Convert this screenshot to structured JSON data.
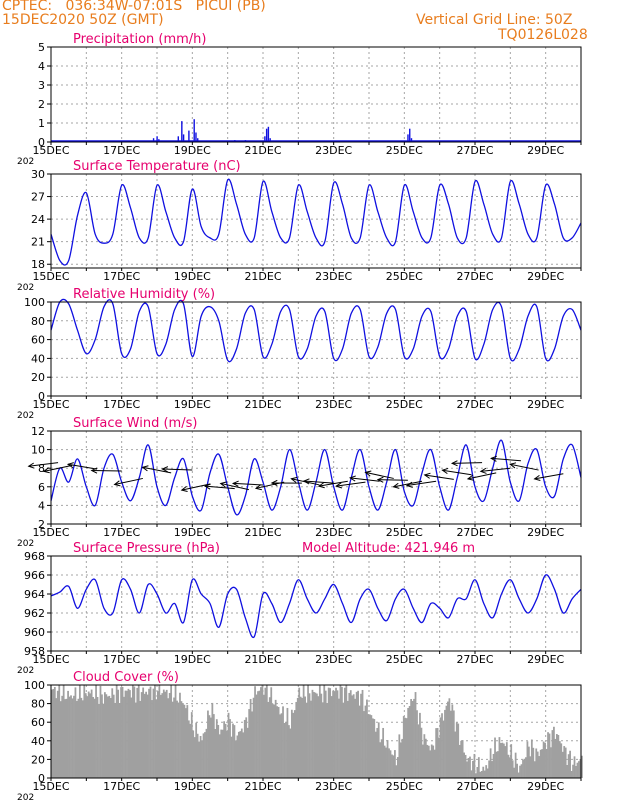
{
  "header": {
    "line1": "CPTEC:   036:34W-07:01S   PICUI (PB)",
    "line2": "15DEC2020 50Z (GMT)",
    "right1": "Vertical Grid Line: 50Z",
    "right2": "TQ0126L028"
  },
  "colors": {
    "header": "#e87d1e",
    "panel_title": "#e6006e",
    "series": "#1010e0",
    "arrow": "#000000",
    "cloud": "#a0a0a0",
    "grid": "#a6a6a6"
  },
  "x_ticks": {
    "labels": [
      "15DEC",
      "17DEC",
      "19DEC",
      "21DEC",
      "23DEC",
      "25DEC",
      "27DEC",
      "29DEC"
    ],
    "days": [
      0,
      2,
      4,
      6,
      8,
      10,
      12,
      14
    ],
    "year_stub": "202"
  },
  "chart_data": [
    {
      "id": "precip",
      "type": "bar",
      "title": "Precipitation (mm/h)",
      "ylim": [
        0,
        5
      ],
      "yticks": [
        0,
        1,
        2,
        3,
        4,
        5
      ],
      "grid": true,
      "points": [
        [
          2.9,
          0.2
        ],
        [
          3.0,
          0.3
        ],
        [
          3.05,
          0.15
        ],
        [
          3.6,
          0.3
        ],
        [
          3.7,
          1.1
        ],
        [
          3.75,
          0.4
        ],
        [
          3.9,
          0.6
        ],
        [
          4.05,
          1.2
        ],
        [
          4.1,
          0.5
        ],
        [
          4.15,
          0.2
        ],
        [
          5.2,
          0.1
        ],
        [
          5.5,
          0.1
        ],
        [
          6.05,
          0.3
        ],
        [
          6.1,
          0.7
        ],
        [
          6.15,
          0.8
        ],
        [
          6.2,
          0.2
        ],
        [
          10.1,
          0.4
        ],
        [
          10.15,
          0.7
        ],
        [
          10.2,
          0.2
        ],
        [
          1.5,
          0.05
        ],
        [
          12.0,
          0.05
        ],
        [
          13.3,
          0.05
        ]
      ]
    },
    {
      "id": "temp",
      "type": "line",
      "title": "Surface Temperature (nC)",
      "ylim": [
        17.5,
        30
      ],
      "yticks": [
        18,
        21,
        24,
        27,
        30
      ],
      "grid": true,
      "x": [
        0,
        0.25,
        0.5,
        0.75,
        1.0,
        1.25,
        1.5,
        1.75,
        2.0,
        2.25,
        2.5,
        2.75,
        3.0,
        3.25,
        3.5,
        3.75,
        4.0,
        4.25,
        4.5,
        4.75,
        5.0,
        5.25,
        5.5,
        5.75,
        6.0,
        6.25,
        6.5,
        6.75,
        7.0,
        7.25,
        7.5,
        7.75,
        8.0,
        8.25,
        8.5,
        8.75,
        9.0,
        9.25,
        9.5,
        9.75,
        10.0,
        10.25,
        10.5,
        10.75,
        11.0,
        11.25,
        11.5,
        11.75,
        12.0,
        12.25,
        12.5,
        12.75,
        13.0,
        13.25,
        13.5,
        13.75,
        14.0,
        14.25,
        14.5,
        14.75,
        15.0
      ],
      "y": [
        22,
        18.5,
        18.5,
        24.5,
        27.5,
        22,
        20.8,
        22,
        28.5,
        25.5,
        21.5,
        21.5,
        28.5,
        25,
        21.5,
        21,
        28,
        23,
        21.5,
        22,
        29.2,
        26,
        22,
        21.5,
        29,
        25,
        21.5,
        21.5,
        28.5,
        25,
        21.5,
        21,
        28.8,
        26,
        21.5,
        21.5,
        28.5,
        25,
        21.5,
        21,
        28.5,
        25,
        21.5,
        21.5,
        28.5,
        26,
        21.5,
        21.5,
        29,
        26,
        22,
        21.5,
        29,
        26,
        22,
        21.5,
        28.5,
        26,
        21.5,
        21.5,
        23.5
      ]
    },
    {
      "id": "rh",
      "type": "line",
      "title": "Relative Humidity (%)",
      "ylim": [
        0,
        100
      ],
      "yticks": [
        0,
        20,
        40,
        60,
        80,
        100
      ],
      "grid": true,
      "x": [
        0,
        0.25,
        0.5,
        0.75,
        1.0,
        1.25,
        1.5,
        1.75,
        2.0,
        2.25,
        2.5,
        2.75,
        3.0,
        3.25,
        3.5,
        3.75,
        4.0,
        4.25,
        4.5,
        4.75,
        5.0,
        5.25,
        5.5,
        5.75,
        6.0,
        6.25,
        6.5,
        6.75,
        7.0,
        7.25,
        7.5,
        7.75,
        8.0,
        8.25,
        8.5,
        8.75,
        9.0,
        9.25,
        9.5,
        9.75,
        10.0,
        10.25,
        10.5,
        10.75,
        11.0,
        11.25,
        11.5,
        11.75,
        12.0,
        12.25,
        12.5,
        12.75,
        13.0,
        13.25,
        13.5,
        13.75,
        14.0,
        14.25,
        14.5,
        14.75,
        15.0
      ],
      "y": [
        70,
        100,
        98,
        70,
        45,
        60,
        95,
        98,
        45,
        50,
        90,
        95,
        45,
        55,
        92,
        98,
        42,
        85,
        95,
        80,
        38,
        50,
        88,
        92,
        42,
        55,
        90,
        92,
        42,
        50,
        85,
        90,
        40,
        50,
        88,
        92,
        42,
        52,
        88,
        92,
        42,
        50,
        85,
        90,
        42,
        50,
        85,
        90,
        40,
        55,
        92,
        95,
        40,
        50,
        85,
        95,
        40,
        50,
        85,
        92,
        70
      ]
    },
    {
      "id": "wind",
      "type": "line",
      "title": "Surface Wind (m/s)",
      "ylim": [
        2,
        12
      ],
      "yticks": [
        2,
        4,
        6,
        8,
        10,
        12
      ],
      "grid": true,
      "x": [
        0,
        0.25,
        0.5,
        0.75,
        1.0,
        1.25,
        1.5,
        1.75,
        2.0,
        2.25,
        2.5,
        2.75,
        3.0,
        3.25,
        3.5,
        3.75,
        4.0,
        4.25,
        4.5,
        4.75,
        5.0,
        5.25,
        5.5,
        5.75,
        6.0,
        6.25,
        6.5,
        6.75,
        7.0,
        7.25,
        7.5,
        7.75,
        8.0,
        8.25,
        8.5,
        8.75,
        9.0,
        9.25,
        9.5,
        9.75,
        10.0,
        10.25,
        10.5,
        10.75,
        11.0,
        11.25,
        11.5,
        11.75,
        12.0,
        12.25,
        12.5,
        12.75,
        13.0,
        13.25,
        13.5,
        13.75,
        14.0,
        14.25,
        14.5,
        14.75,
        15.0
      ],
      "y": [
        4.5,
        8,
        6.5,
        9,
        6,
        4,
        8,
        9.5,
        6.5,
        4.5,
        7,
        10.5,
        6,
        4,
        7,
        9,
        5,
        3.5,
        7.5,
        9.5,
        6,
        3,
        5,
        9,
        6.5,
        3.5,
        6,
        10,
        6.5,
        3.5,
        6.5,
        10,
        6,
        3.5,
        7,
        10,
        6,
        3.5,
        6.5,
        10,
        5.5,
        4,
        7.5,
        10,
        6,
        3.5,
        7,
        10.5,
        6,
        4.5,
        8,
        11,
        6.5,
        4.5,
        8.5,
        10,
        6,
        5,
        9,
        10.5,
        7
      ],
      "arrows": [
        [
          0.2,
          8.6
        ],
        [
          0.6,
          8.3
        ],
        [
          1.3,
          7.9
        ],
        [
          2.0,
          7.7
        ],
        [
          2.6,
          6.9
        ],
        [
          3.4,
          7.5
        ],
        [
          4.0,
          7.8
        ],
        [
          4.5,
          6.3
        ],
        [
          5.2,
          5.8
        ],
        [
          5.6,
          5.7
        ],
        [
          6.0,
          6.2
        ],
        [
          6.6,
          6.5
        ],
        [
          7.1,
          6.4
        ],
        [
          7.6,
          6.2
        ],
        [
          8.0,
          6.4
        ],
        [
          8.4,
          6.6
        ],
        [
          8.9,
          6.5
        ],
        [
          9.3,
          6.6
        ],
        [
          9.7,
          6.9
        ],
        [
          10.1,
          6.7
        ],
        [
          10.5,
          6.6
        ],
        [
          10.9,
          6.6
        ],
        [
          11.4,
          6.8
        ],
        [
          11.9,
          7.3
        ],
        [
          12.2,
          8.6
        ],
        [
          12.6,
          7.5
        ],
        [
          13.0,
          8.0
        ],
        [
          13.3,
          8.8
        ],
        [
          13.8,
          7.8
        ],
        [
          14.5,
          7.4
        ]
      ]
    },
    {
      "id": "pressure",
      "type": "line",
      "title": "Surface Pressure (hPa)",
      "annotation": "Model Altitude: 421.946  m",
      "ylim": [
        958,
        968
      ],
      "yticks": [
        958,
        960,
        962,
        964,
        966,
        968
      ],
      "grid": true,
      "x": [
        0,
        0.25,
        0.5,
        0.75,
        1.0,
        1.25,
        1.5,
        1.75,
        2.0,
        2.25,
        2.5,
        2.75,
        3.0,
        3.25,
        3.5,
        3.75,
        4.0,
        4.25,
        4.5,
        4.75,
        5.0,
        5.25,
        5.5,
        5.75,
        6.0,
        6.25,
        6.5,
        6.75,
        7.0,
        7.25,
        7.5,
        7.75,
        8.0,
        8.25,
        8.5,
        8.75,
        9.0,
        9.25,
        9.5,
        9.75,
        10.0,
        10.25,
        10.5,
        10.75,
        11.0,
        11.25,
        11.5,
        11.75,
        12.0,
        12.25,
        12.5,
        12.75,
        13.0,
        13.25,
        13.5,
        13.75,
        14.0,
        14.25,
        14.5,
        14.75,
        15.0
      ],
      "y": [
        963.8,
        964.2,
        964.8,
        962.5,
        964.5,
        965.5,
        962.5,
        962,
        965.5,
        964.5,
        962,
        965,
        964,
        962,
        963,
        961,
        965.5,
        964,
        963,
        960.5,
        964,
        964.5,
        961.5,
        959.5,
        964,
        963,
        961,
        963,
        965.5,
        963.5,
        962,
        963.5,
        965,
        963,
        961,
        963.5,
        964.5,
        962.5,
        961.2,
        963.5,
        964.5,
        962.5,
        961,
        963,
        962.5,
        961.5,
        963.5,
        963.5,
        965.5,
        963,
        961.5,
        964,
        965.5,
        963.5,
        962,
        963.5,
        966,
        964.5,
        962,
        963.5,
        964.5
      ]
    },
    {
      "id": "cloud",
      "type": "area",
      "title": "Cloud Cover (%)",
      "ylim": [
        0,
        100
      ],
      "yticks": [
        0,
        20,
        40,
        60,
        80,
        100
      ],
      "grid": true,
      "x": [
        0,
        0.25,
        0.5,
        0.75,
        1.0,
        1.25,
        1.5,
        1.75,
        2.0,
        2.25,
        2.5,
        2.75,
        3.0,
        3.25,
        3.5,
        3.75,
        4.0,
        4.25,
        4.5,
        4.75,
        5.0,
        5.25,
        5.5,
        5.75,
        6.0,
        6.25,
        6.5,
        6.75,
        7.0,
        7.25,
        7.5,
        7.75,
        8.0,
        8.25,
        8.5,
        8.75,
        9.0,
        9.25,
        9.5,
        9.75,
        10.0,
        10.25,
        10.5,
        10.75,
        11.0,
        11.25,
        11.5,
        11.75,
        12.0,
        12.25,
        12.5,
        12.75,
        13.0,
        13.25,
        13.5,
        13.75,
        14.0,
        14.25,
        14.5,
        14.75,
        15.0
      ],
      "y": [
        95,
        92,
        88,
        90,
        92,
        90,
        88,
        90,
        93,
        94,
        92,
        93,
        95,
        92,
        90,
        80,
        55,
        40,
        75,
        50,
        62,
        45,
        60,
        92,
        98,
        85,
        70,
        60,
        92,
        90,
        92,
        91,
        94,
        93,
        90,
        88,
        70,
        50,
        35,
        20,
        65,
        90,
        45,
        30,
        60,
        85,
        50,
        20,
        15,
        8,
        30,
        40,
        25,
        10,
        35,
        25,
        40,
        50,
        30,
        15,
        20
      ]
    }
  ]
}
